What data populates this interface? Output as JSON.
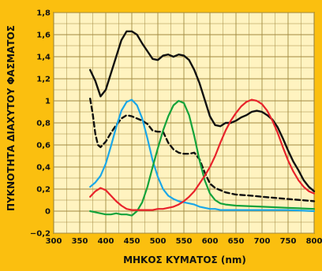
{
  "colors": {
    "background": "#fbbf0f",
    "plot_background": "#fff3c0",
    "grid": "#a08a40",
    "black_series": "#111111",
    "dashed_series": "#111111",
    "blue_series": "#1aa7e8",
    "green_series": "#13a33b",
    "red_series": "#e8232b"
  },
  "chart_data": {
    "type": "line",
    "title": "",
    "xlabel": "ΜΗΚΟΣ ΚΥΜΑΤΟΣ (nm)",
    "ylabel": "ΠΥΚΝΟΤΗΤΑ ΔΙΑΧΥΤΟΥ ΦΑΣΜΑΤΟΣ",
    "xlim": [
      300,
      800
    ],
    "ylim": [
      -0.2,
      1.8
    ],
    "grid": true,
    "x_ticks": [
      300,
      350,
      400,
      450,
      500,
      550,
      600,
      650,
      700,
      750,
      800
    ],
    "x_tick_labels": [
      "300",
      "350",
      "400",
      "450",
      "500",
      "550",
      "600",
      "650",
      "700",
      "750",
      "800"
    ],
    "y_ticks": [
      -0.2,
      0,
      0.2,
      0.4,
      0.6,
      0.8,
      1,
      1.2,
      1.4,
      1.6,
      1.8
    ],
    "y_tick_labels": [
      "−0,2",
      "0",
      "0,2",
      "0,4",
      "0,6",
      "0,8",
      "1",
      "1,2",
      "1,4",
      "1,6",
      "1,8"
    ],
    "series": [
      {
        "style": "solid",
        "color": "#111111",
        "x": [
          370,
          380,
          390,
          400,
          410,
          420,
          430,
          440,
          450,
          460,
          470,
          480,
          490,
          500,
          510,
          520,
          530,
          540,
          550,
          560,
          570,
          580,
          590,
          600,
          610,
          620,
          630,
          640,
          650,
          660,
          670,
          680,
          690,
          700,
          710,
          720,
          730,
          740,
          750,
          760,
          770,
          780,
          790,
          800
        ],
        "y": [
          1.28,
          1.18,
          1.04,
          1.1,
          1.25,
          1.4,
          1.55,
          1.63,
          1.63,
          1.6,
          1.52,
          1.45,
          1.38,
          1.37,
          1.41,
          1.42,
          1.4,
          1.42,
          1.41,
          1.37,
          1.28,
          1.16,
          1.01,
          0.86,
          0.78,
          0.77,
          0.8,
          0.8,
          0.82,
          0.85,
          0.87,
          0.9,
          0.91,
          0.9,
          0.87,
          0.83,
          0.76,
          0.66,
          0.55,
          0.45,
          0.37,
          0.28,
          0.22,
          0.18
        ]
      },
      {
        "style": "dashed",
        "color": "#111111",
        "x": [
          370,
          375,
          380,
          385,
          390,
          400,
          410,
          420,
          430,
          440,
          450,
          460,
          470,
          480,
          490,
          500,
          510,
          520,
          530,
          540,
          550,
          560,
          570,
          580,
          590,
          600,
          610,
          620,
          630,
          650,
          680,
          700,
          750,
          800
        ],
        "y": [
          1.02,
          0.88,
          0.7,
          0.6,
          0.58,
          0.63,
          0.71,
          0.78,
          0.84,
          0.87,
          0.86,
          0.84,
          0.82,
          0.79,
          0.73,
          0.72,
          0.72,
          0.62,
          0.56,
          0.53,
          0.52,
          0.52,
          0.53,
          0.47,
          0.35,
          0.25,
          0.21,
          0.19,
          0.17,
          0.15,
          0.14,
          0.13,
          0.11,
          0.09
        ]
      },
      {
        "style": "solid",
        "color": "#1aa7e8",
        "x": [
          370,
          380,
          390,
          400,
          410,
          420,
          430,
          440,
          450,
          460,
          470,
          480,
          490,
          500,
          510,
          520,
          530,
          540,
          550,
          560,
          570,
          580,
          590,
          600,
          610,
          620,
          650,
          700,
          750,
          800
        ],
        "y": [
          0.22,
          0.26,
          0.32,
          0.43,
          0.59,
          0.76,
          0.91,
          0.99,
          1.01,
          0.96,
          0.84,
          0.66,
          0.46,
          0.31,
          0.2,
          0.14,
          0.11,
          0.09,
          0.08,
          0.07,
          0.06,
          0.04,
          0.03,
          0.02,
          0.02,
          0.01,
          0.01,
          0.01,
          0.01,
          0.0
        ]
      },
      {
        "style": "solid",
        "color": "#13a33b",
        "x": [
          370,
          380,
          390,
          400,
          410,
          420,
          430,
          440,
          450,
          460,
          470,
          480,
          490,
          500,
          510,
          520,
          530,
          540,
          550,
          560,
          570,
          580,
          590,
          600,
          610,
          620,
          630,
          650,
          700,
          750,
          800
        ],
        "y": [
          0.0,
          -0.01,
          -0.02,
          -0.03,
          -0.03,
          -0.02,
          -0.03,
          -0.03,
          -0.04,
          0.0,
          0.08,
          0.22,
          0.4,
          0.57,
          0.73,
          0.86,
          0.96,
          1.0,
          0.98,
          0.87,
          0.68,
          0.46,
          0.28,
          0.16,
          0.1,
          0.07,
          0.06,
          0.05,
          0.04,
          0.03,
          0.02
        ]
      },
      {
        "style": "solid",
        "color": "#e8232b",
        "x": [
          370,
          380,
          390,
          400,
          410,
          420,
          430,
          440,
          450,
          460,
          470,
          480,
          490,
          500,
          510,
          520,
          530,
          540,
          550,
          560,
          570,
          580,
          590,
          600,
          610,
          620,
          630,
          640,
          650,
          660,
          670,
          680,
          690,
          700,
          710,
          720,
          730,
          740,
          750,
          760,
          770,
          780,
          790,
          800
        ],
        "y": [
          0.13,
          0.18,
          0.21,
          0.19,
          0.14,
          0.09,
          0.05,
          0.02,
          0.01,
          0.01,
          0.01,
          0.01,
          0.01,
          0.02,
          0.02,
          0.03,
          0.04,
          0.06,
          0.09,
          0.13,
          0.18,
          0.25,
          0.32,
          0.4,
          0.5,
          0.62,
          0.73,
          0.82,
          0.89,
          0.95,
          0.99,
          1.01,
          1.0,
          0.97,
          0.91,
          0.82,
          0.71,
          0.58,
          0.46,
          0.36,
          0.28,
          0.22,
          0.18,
          0.16
        ]
      }
    ]
  }
}
